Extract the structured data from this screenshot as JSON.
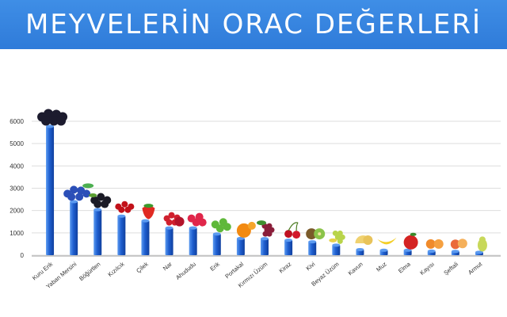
{
  "title": "MEYVELERİN ORAC DEĞERLERİ",
  "colors": {
    "banner": "#3f8ee6",
    "bar": "#1f5fd0",
    "bar_light": "#5b9af0",
    "grid": "#dddddd",
    "axis_text": "#333333"
  },
  "chart_data": {
    "type": "bar",
    "title": "MEYVELERİN ORAC DEĞERLERİ",
    "xlabel": "",
    "ylabel": "",
    "categories": [
      "Kuru Erik",
      "Yaban Mersini",
      "Böğürtlen",
      "Kızılcık",
      "Çilek",
      "Nar",
      "Ahududu",
      "Erik",
      "Portakal",
      "Kırmızı Üzüm",
      "Kiraz",
      "Kivi",
      "Beyaz Üzüm",
      "Kavun",
      "Muz",
      "Elma",
      "Kayısı",
      "Şeftali",
      "Armut"
    ],
    "values": [
      5770,
      2400,
      2040,
      1750,
      1540,
      1220,
      1220,
      950,
      750,
      740,
      670,
      600,
      450,
      250,
      220,
      220,
      180,
      170,
      130
    ],
    "yticks": [
      0,
      1000,
      2000,
      3000,
      4000,
      5000,
      6000
    ],
    "ylim": [
      0,
      6000
    ],
    "grid": true,
    "legend": "none",
    "icons": [
      "dried-plum-icon",
      "blueberry-icon",
      "blackberry-icon",
      "cranberry-icon",
      "strawberry-icon",
      "pomegranate-icon",
      "raspberry-icon",
      "plum-icon",
      "orange-icon",
      "red-grape-icon",
      "cherry-icon",
      "kiwi-icon",
      "white-grape-icon",
      "melon-icon",
      "banana-icon",
      "apple-icon",
      "apricot-icon",
      "peach-icon",
      "pear-icon"
    ]
  }
}
